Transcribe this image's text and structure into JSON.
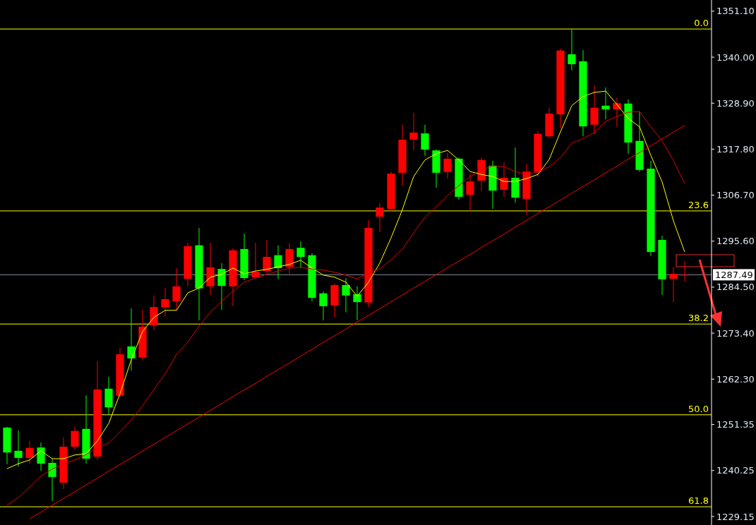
{
  "chart_data": {
    "type": "candlestick",
    "ylim": [
      1227.1,
      1353.8
    ],
    "tick_labels": "y",
    "yticks": [
      {
        "value": 1351.1,
        "label": "1351.10"
      },
      {
        "value": 1340,
        "label": "1340.00"
      },
      {
        "value": 1328.9,
        "label": "1328.90"
      },
      {
        "value": 1317.8,
        "label": "1317.80"
      },
      {
        "value": 1306.7,
        "label": "1306.70"
      },
      {
        "value": 1295.6,
        "label": "1295.60"
      },
      {
        "value": 1284.5,
        "label": "1284.50"
      },
      {
        "value": 1273.4,
        "label": "1273.40"
      },
      {
        "value": 1262.3,
        "label": "1262.30"
      },
      {
        "value": 1251.35,
        "label": "1251.35"
      },
      {
        "value": 1240.25,
        "label": "1240.25"
      },
      {
        "value": 1229.15,
        "label": "1229.15"
      }
    ],
    "categories": [
      null,
      null,
      null,
      null,
      null,
      null,
      null,
      null,
      null,
      null,
      null,
      null,
      null,
      null,
      null,
      null,
      null,
      null,
      null,
      null,
      null,
      null,
      null,
      null,
      null,
      null,
      null,
      null,
      null,
      null,
      null,
      null,
      null,
      null,
      null,
      null,
      null,
      null,
      null,
      null,
      null,
      null,
      null,
      null,
      null,
      null,
      null,
      null,
      null,
      null,
      null,
      null,
      null,
      null,
      null,
      null,
      null,
      null,
      null,
      null,
      null
    ],
    "ohlc": [
      [
        1250.6,
        1250.8,
        1241.8,
        1244.6
      ],
      [
        1245.0,
        1249.9,
        1241.2,
        1243.3
      ],
      [
        1243.3,
        1247.4,
        1241.9,
        1245.7
      ],
      [
        1245.8,
        1247.0,
        1240.2,
        1241.9
      ],
      [
        1242.1,
        1243.1,
        1232.9,
        1238.7
      ],
      [
        1237.3,
        1248.2,
        1235.8,
        1246.0
      ],
      [
        1246.0,
        1250.8,
        1245.2,
        1249.8
      ],
      [
        1250.3,
        1258.4,
        1241.9,
        1243.1
      ],
      [
        1243.6,
        1266.6,
        1242.8,
        1259.8
      ],
      [
        1260.0,
        1262.9,
        1253.8,
        1255.5
      ],
      [
        1258.3,
        1269.9,
        1257.9,
        1268.3
      ],
      [
        1270.2,
        1279.4,
        1264.4,
        1267.3
      ],
      [
        1267.5,
        1279.0,
        1266.8,
        1275.0
      ],
      [
        1275.3,
        1282.5,
        1274.1,
        1279.7
      ],
      [
        1279.6,
        1284.3,
        1277.4,
        1281.6
      ],
      [
        1281.1,
        1289.1,
        1278.9,
        1284.7
      ],
      [
        1286.5,
        1295.2,
        1284.7,
        1294.4
      ],
      [
        1294.6,
        1298.8,
        1276.5,
        1284.2
      ],
      [
        1284.7,
        1295.2,
        1282.6,
        1289.3
      ],
      [
        1288.9,
        1290.3,
        1279.0,
        1284.8
      ],
      [
        1284.7,
        1293.9,
        1279.9,
        1293.4
      ],
      [
        1293.7,
        1297.4,
        1286.2,
        1286.7
      ],
      [
        1286.9,
        1295.2,
        1286.9,
        1288.2
      ],
      [
        1288.4,
        1295.9,
        1287.9,
        1291.8
      ],
      [
        1292.2,
        1294.6,
        1286.4,
        1289.1
      ],
      [
        1289.4,
        1295.1,
        1287.7,
        1293.7
      ],
      [
        1294.0,
        1295.6,
        1289.1,
        1291.8
      ],
      [
        1292.2,
        1292.7,
        1281.1,
        1281.9
      ],
      [
        1283.0,
        1283.5,
        1276.5,
        1279.9
      ],
      [
        1280.1,
        1285.4,
        1277.2,
        1285.0
      ],
      [
        1285.0,
        1286.7,
        1278.4,
        1282.5
      ],
      [
        1282.8,
        1284.7,
        1276.5,
        1280.9
      ],
      [
        1280.8,
        1300.7,
        1279.7,
        1298.8
      ],
      [
        1301.5,
        1304.8,
        1297.8,
        1303.7
      ],
      [
        1303.4,
        1312.4,
        1302.9,
        1311.9
      ],
      [
        1312.1,
        1323.7,
        1309.0,
        1320.1
      ],
      [
        1320.1,
        1326.6,
        1317.5,
        1321.8
      ],
      [
        1321.6,
        1323.7,
        1316.2,
        1317.7
      ],
      [
        1317.5,
        1317.7,
        1308.5,
        1312.1
      ],
      [
        1312.3,
        1316.9,
        1310.7,
        1315.5
      ],
      [
        1315.5,
        1315.8,
        1305.6,
        1306.3
      ],
      [
        1306.8,
        1311.9,
        1302.9,
        1310.0
      ],
      [
        1310.2,
        1315.7,
        1307.7,
        1315.2
      ],
      [
        1313.8,
        1315.0,
        1303.4,
        1307.8
      ],
      [
        1308.0,
        1314.6,
        1306.3,
        1310.9
      ],
      [
        1310.9,
        1318.2,
        1304.9,
        1306.1
      ],
      [
        1305.8,
        1314.3,
        1302.0,
        1312.4
      ],
      [
        1312.3,
        1322.1,
        1311.1,
        1321.5
      ],
      [
        1320.9,
        1327.8,
        1320.6,
        1326.4
      ],
      [
        1326.2,
        1342.1,
        1322.8,
        1341.6
      ],
      [
        1340.7,
        1346.8,
        1336.8,
        1338.3
      ],
      [
        1339.0,
        1341.7,
        1320.9,
        1323.3
      ],
      [
        1323.7,
        1333.2,
        1321.5,
        1327.8
      ],
      [
        1328.3,
        1332.7,
        1325.0,
        1327.4
      ],
      [
        1327.4,
        1330.3,
        1323.2,
        1328.9
      ],
      [
        1328.8,
        1329.8,
        1316.7,
        1319.4
      ],
      [
        1319.8,
        1326.9,
        1312.4,
        1312.8
      ],
      [
        1313.1,
        1315.0,
        1292.0,
        1293.0
      ],
      [
        1295.9,
        1296.9,
        1282.6,
        1286.4
      ],
      [
        1286.5,
        1289.4,
        1280.9,
        1287.7
      ],
      [
        1287.4,
        1290.8,
        1285.9,
        1287.49
      ]
    ],
    "colors": [
      "#00ff00",
      "#00ff00",
      "#ff0000",
      "#00ff00",
      "#00ff00",
      "#ff0000",
      "#ff0000",
      "#00ff00",
      "#ff0000",
      "#00ff00",
      "#ff0000",
      "#00ff00",
      "#ff0000",
      "#ff0000",
      "#ff0000",
      "#ff0000",
      "#ff0000",
      "#00ff00",
      "#ff0000",
      "#00ff00",
      "#ff0000",
      "#00ff00",
      "#ff0000",
      "#ff0000",
      "#00ff00",
      "#ff0000",
      "#00ff00",
      "#00ff00",
      "#00ff00",
      "#ff0000",
      "#00ff00",
      "#00ff00",
      "#ff0000",
      "#ff0000",
      "#ff0000",
      "#ff0000",
      "#ff0000",
      "#00ff00",
      "#00ff00",
      "#ff0000",
      "#00ff00",
      "#ff0000",
      "#ff0000",
      "#00ff00",
      "#ff0000",
      "#00ff00",
      "#ff0000",
      "#ff0000",
      "#ff0000",
      "#ff0000",
      "#00ff00",
      "#00ff00",
      "#ff0000",
      "#00ff00",
      "#ff0000",
      "#00ff00",
      "#00ff00",
      "#00ff00",
      "#00ff00",
      "#ff0000",
      "#ff0000"
    ],
    "series": [
      {
        "type": "line",
        "color": "#ffff00",
        "values": [
          1240.7,
          1241.9,
          1242.8,
          1245.0,
          1243.1,
          1243.1,
          1244.0,
          1244.3,
          1247.4,
          1251.6,
          1258.8,
          1267.0,
          1273.8,
          1277.2,
          1278.9,
          1278.9,
          1283.1,
          1284.3,
          1286.9,
          1287.6,
          1289.1,
          1287.7,
          1288.4,
          1288.8,
          1289.4,
          1290.0,
          1291.0,
          1289.1,
          1287.4,
          1286.9,
          1285.7,
          1282.3,
          1285.7,
          1290.3,
          1296.4,
          1303.2,
          1311.2,
          1315.2,
          1316.7,
          1317.5,
          1315.2,
          1312.4,
          1311.7,
          1311.2,
          1310.0,
          1310.0,
          1310.7,
          1311.7,
          1315.3,
          1322.0,
          1328.3,
          1330.5,
          1331.5,
          1331.8,
          1328.6,
          1325.2,
          1323.2,
          1316.3,
          1309.9,
          1300.5,
          1293.0
        ]
      },
      {
        "type": "line",
        "color": "#e00000",
        "values": [
          1231.9,
          1233.7,
          1236.3,
          1238.9,
          1240.6,
          1241.8,
          1242.8,
          1244.1,
          1245.7,
          1246.9,
          1249.6,
          1252.5,
          1255.9,
          1259.8,
          1263.6,
          1268.3,
          1271.2,
          1275.1,
          1278.5,
          1281.1,
          1283.5,
          1285.7,
          1286.7,
          1287.6,
          1288.4,
          1289.1,
          1289.3,
          1288.9,
          1288.6,
          1288.1,
          1287.4,
          1286.5,
          1287.9,
          1288.9,
          1291.1,
          1293.7,
          1297.6,
          1301.4,
          1303.9,
          1306.6,
          1309.0,
          1311.2,
          1312.8,
          1313.8,
          1313.6,
          1312.4,
          1311.7,
          1312.3,
          1313.5,
          1315.8,
          1319.2,
          1320.4,
          1321.8,
          1324.5,
          1325.7,
          1326.7,
          1326.9,
          1323.2,
          1319.8,
          1315.0,
          1309.5
        ]
      },
      {
        "type": "line",
        "color": "#ff0000",
        "values": [
          null,
          null,
          1228.6,
          1230.2,
          1231.9,
          1233.5,
          1235.1,
          1236.8,
          1238.4,
          1240.1,
          1241.7,
          1243.3,
          1245.0,
          1246.6,
          1248.2,
          1249.9,
          1251.5,
          1253.1,
          1254.8,
          1256.4,
          1258.1,
          1259.7,
          1261.3,
          1263.0,
          1264.6,
          1266.2,
          1267.9,
          1269.5,
          1271.2,
          1272.8,
          1274.4,
          1276.1,
          1277.7,
          1279.3,
          1281.0,
          1282.6,
          1284.3,
          1285.9,
          1287.5,
          1289.2,
          1290.8,
          1292.4,
          1294.1,
          1295.7,
          1297.3,
          1299.0,
          1300.6,
          1302.3,
          1303.9,
          1305.5,
          1307.2,
          1308.8,
          1310.4,
          1312.1,
          1313.7,
          1315.4,
          1317.0,
          1318.6,
          1320.3,
          1321.9,
          1323.5
        ]
      }
    ],
    "ref_lines": [
      {
        "axis": "y",
        "value": 1346.8,
        "color": "#ffff00"
      },
      {
        "axis": "y",
        "value": 1302.9,
        "color": "#ffff00"
      },
      {
        "axis": "y",
        "value": 1275.6,
        "color": "#ffff00"
      },
      {
        "axis": "y",
        "value": 1253.7,
        "color": "#ffff00"
      },
      {
        "axis": "y",
        "value": 1231.5,
        "color": "#ffff00"
      },
      {
        "axis": "y",
        "value": 1287.49,
        "label": "1287.49",
        "color": "#7f8c9a"
      }
    ],
    "annotations": [
      {
        "text": "0.0",
        "y": 1346.8
      },
      {
        "text": "23.6",
        "y": 1302.9
      },
      {
        "text": "38.2",
        "y": 1275.6
      },
      {
        "text": "50.0",
        "y": 1253.7
      },
      {
        "text": "61.8",
        "y": 1231.5
      }
    ]
  }
}
